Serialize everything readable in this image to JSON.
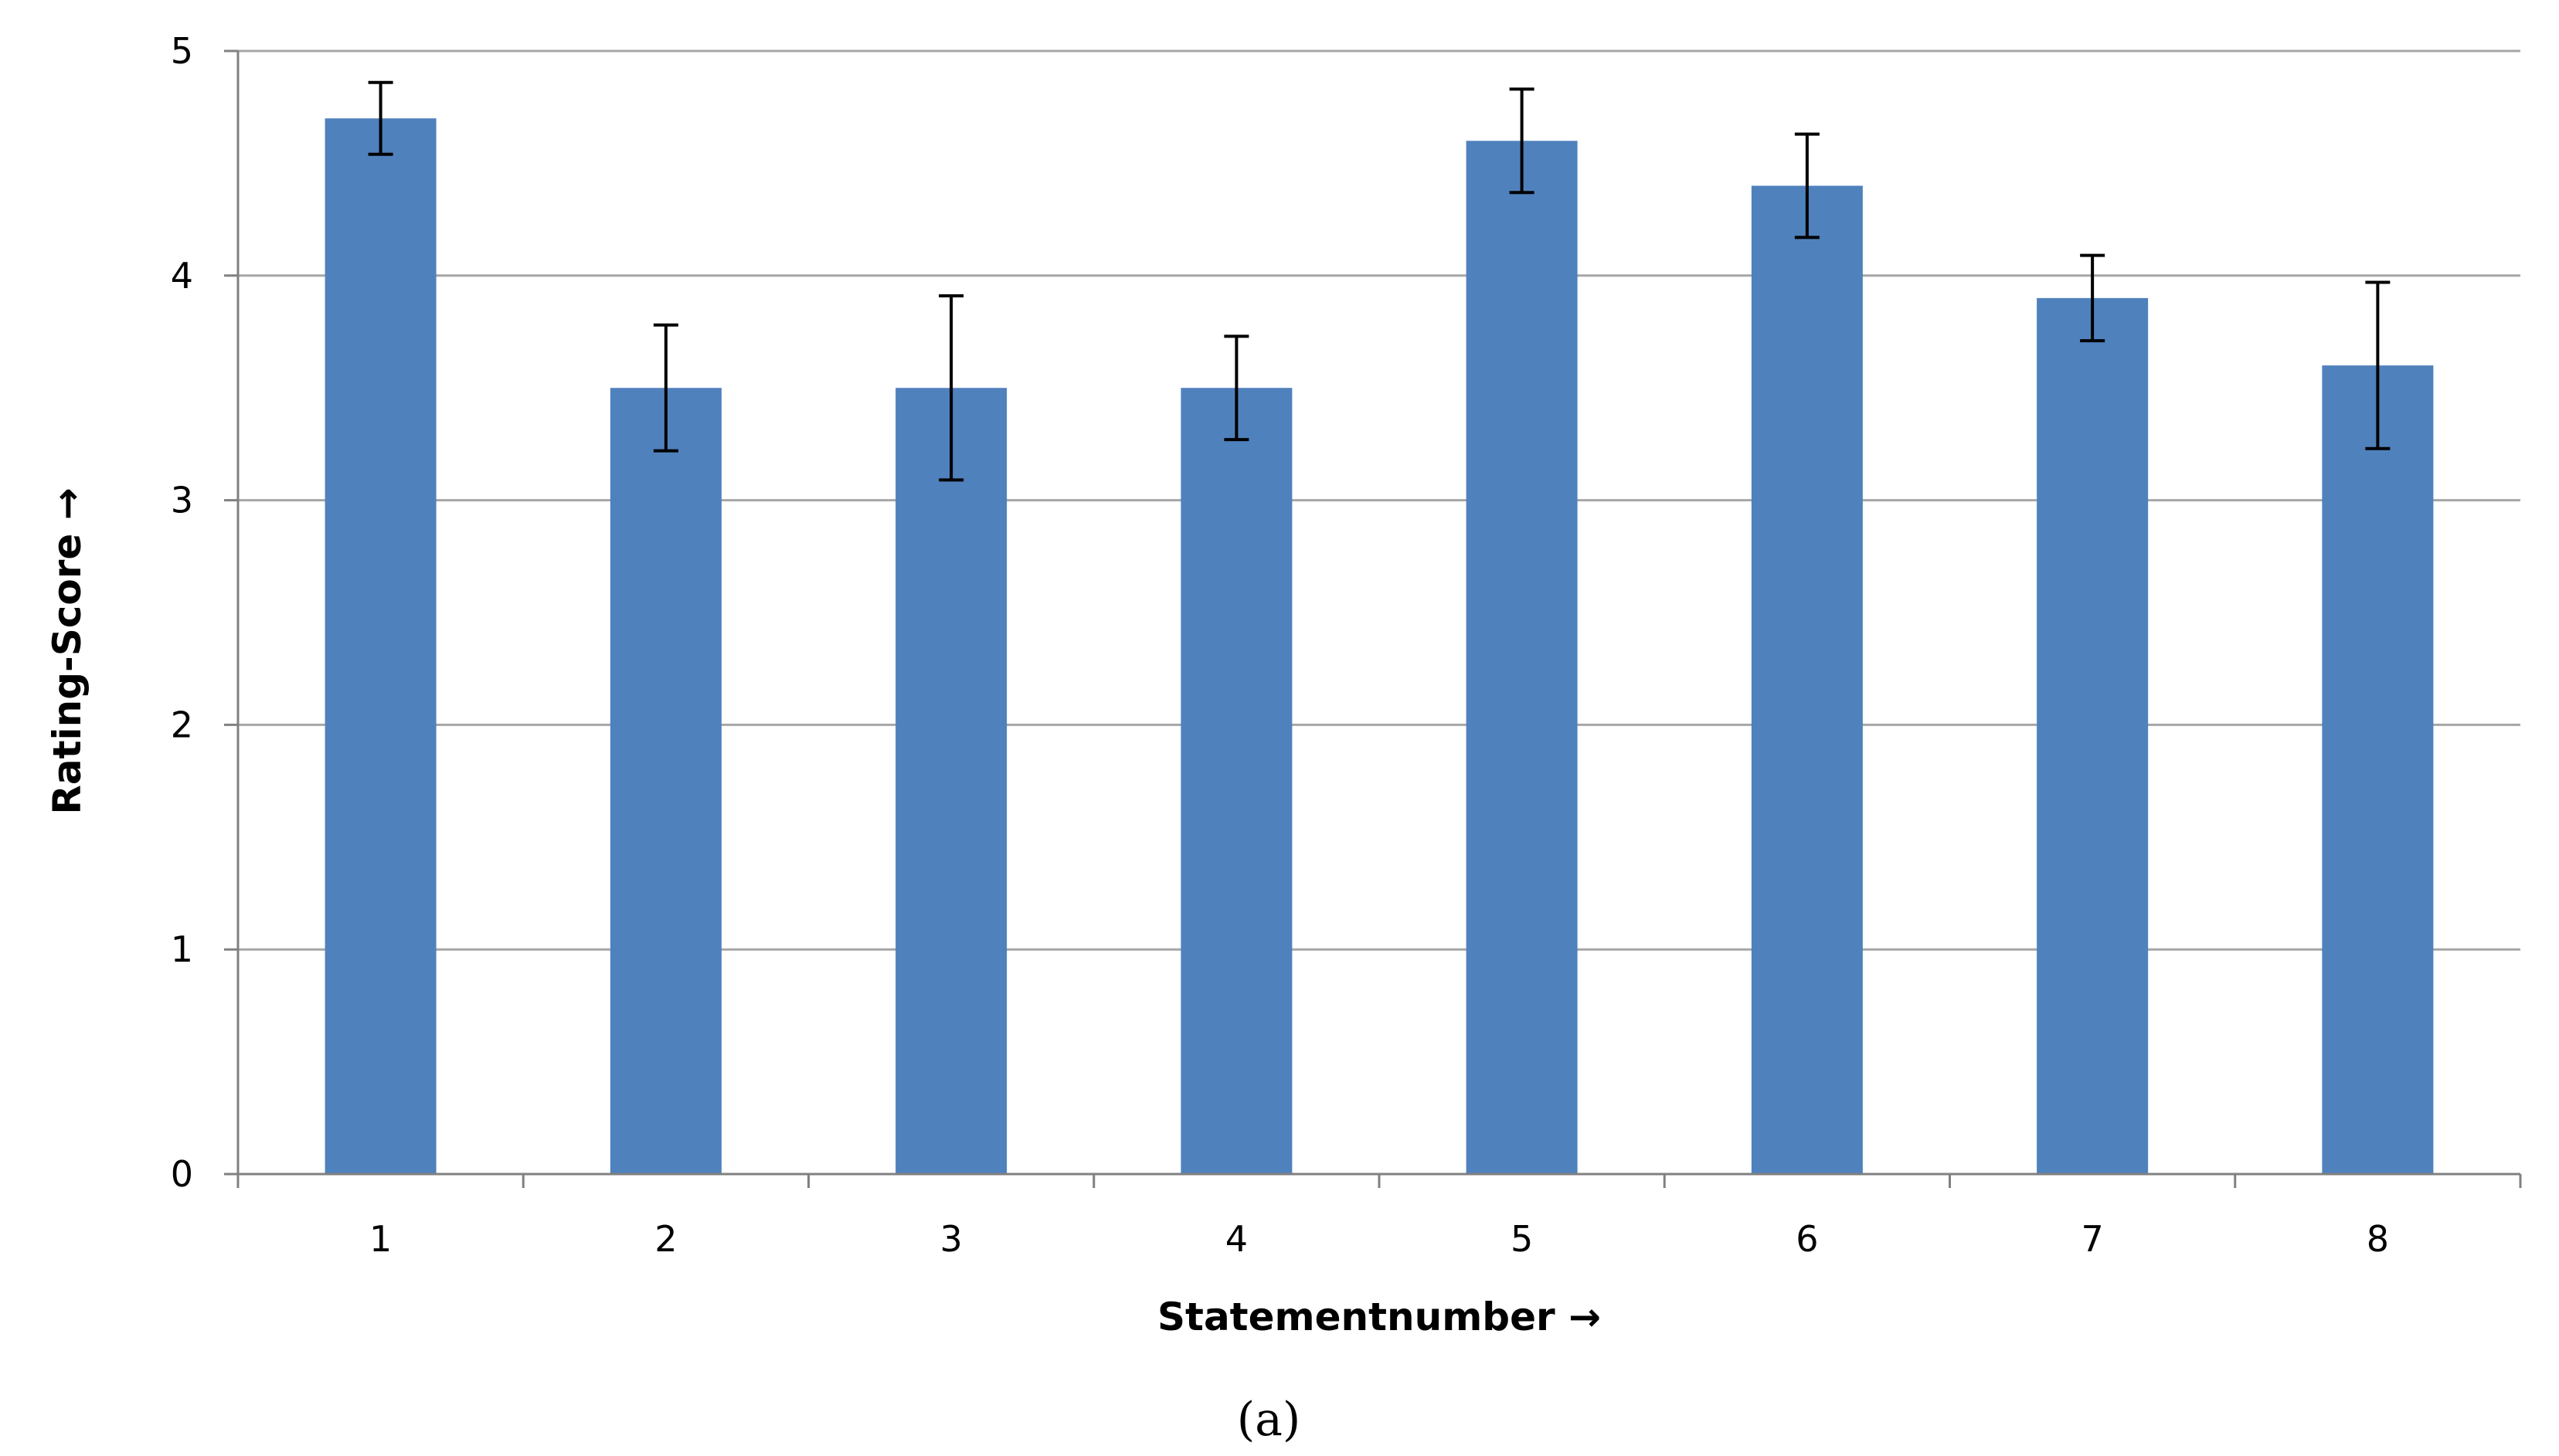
{
  "chart_data": {
    "type": "bar",
    "title": "",
    "xlabel": "Statementnumber →",
    "ylabel": "Rating-Score →",
    "categories": [
      "1",
      "2",
      "3",
      "4",
      "5",
      "6",
      "7",
      "8"
    ],
    "series": [
      {
        "values": [
          4.7,
          3.5,
          3.5,
          3.5,
          4.6,
          4.4,
          3.9,
          3.6
        ],
        "error": [
          0.16,
          0.28,
          0.41,
          0.23,
          0.23,
          0.23,
          0.19,
          0.37
        ]
      }
    ],
    "ylim": [
      0,
      5
    ],
    "yticks": [
      0,
      1,
      2,
      3,
      4,
      5
    ],
    "grid": true,
    "legend": "none",
    "colors": {
      "bar": "#4f81bd",
      "grid": "#a6a6a6",
      "axis": "#808080",
      "error_bar": "#000000"
    }
  },
  "caption": "(a)"
}
